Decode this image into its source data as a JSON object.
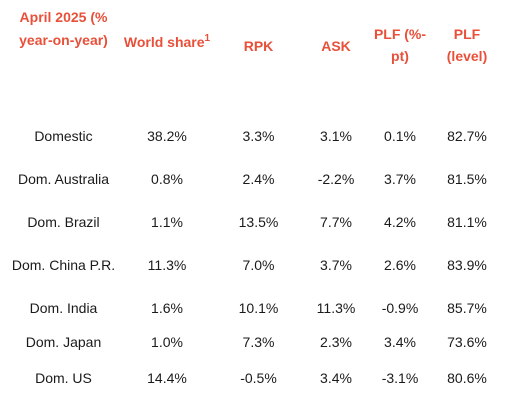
{
  "table": {
    "headers": {
      "period": "April 2025 (% year-on-year)",
      "world_share": "World share",
      "world_share_footnote": "1",
      "rpk": "RPK",
      "ask": "ASK",
      "plf_change": "PLF (%-pt)",
      "plf_level": "PLF (level)"
    },
    "rows": [
      {
        "market": "Domestic",
        "world_share": "38.2%",
        "rpk": "3.3%",
        "ask": "3.1%",
        "plf_change": "0.1%",
        "plf_level": "82.7%"
      },
      {
        "market": "Dom. Australia",
        "world_share": "0.8%",
        "rpk": "2.4%",
        "ask": "-2.2%",
        "plf_change": "3.7%",
        "plf_level": "81.5%"
      },
      {
        "market": "Dom. Brazil",
        "world_share": "1.1%",
        "rpk": "13.5%",
        "ask": "7.7%",
        "plf_change": "4.2%",
        "plf_level": "81.1%"
      },
      {
        "market": "Dom. China P.R.",
        "world_share": "11.3%",
        "rpk": "7.0%",
        "ask": "3.7%",
        "plf_change": "2.6%",
        "plf_level": "83.9%"
      },
      {
        "market": "Dom. India",
        "world_share": "1.6%",
        "rpk": "10.1%",
        "ask": "11.3%",
        "plf_change": "-0.9%",
        "plf_level": "85.7%"
      },
      {
        "market": "Dom. Japan",
        "world_share": "1.0%",
        "rpk": "7.3%",
        "ask": "2.3%",
        "plf_change": "3.4%",
        "plf_level": "73.6%"
      },
      {
        "market": "Dom. US",
        "world_share": "14.4%",
        "rpk": "-0.5%",
        "ask": "3.4%",
        "plf_change": "-3.1%",
        "plf_level": "80.6%"
      }
    ],
    "colors": {
      "header_text": "#e8503a",
      "body_text": "#1a1a1a",
      "background": "#ffffff"
    }
  }
}
